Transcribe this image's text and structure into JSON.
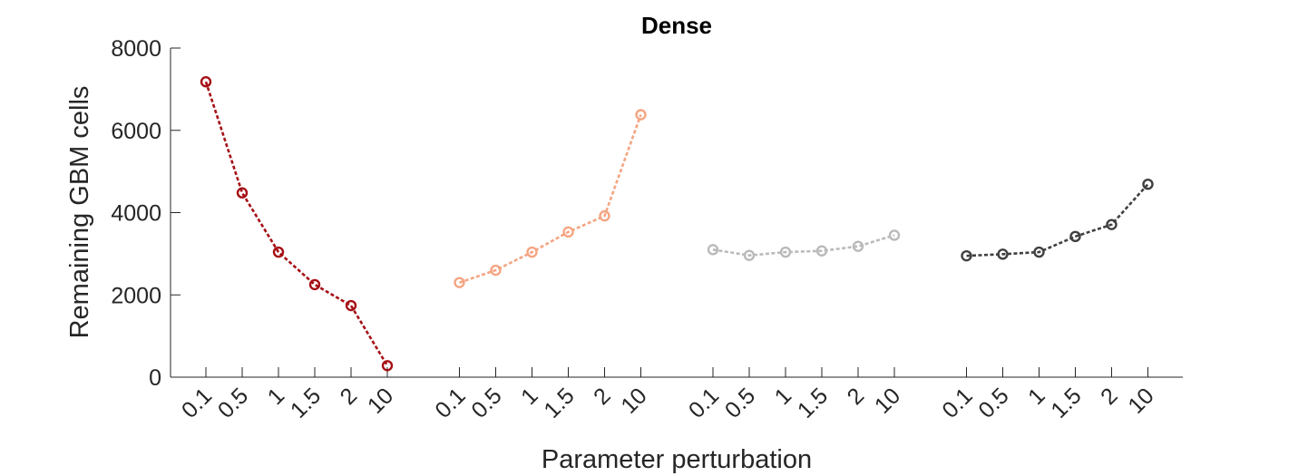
{
  "chart_data": {
    "type": "line",
    "title": "Dense",
    "xlabel": "Parameter perturbation",
    "ylabel": "Remaining GBM cells",
    "ylim": [
      0,
      8000
    ],
    "yticks": [
      0,
      2000,
      4000,
      6000,
      8000
    ],
    "categories": [
      "0.1",
      "0.5",
      "1",
      "1.5",
      "2",
      "10"
    ],
    "grid": false,
    "series": [
      {
        "color": "#a50f15",
        "values": [
          7180,
          4480,
          3040,
          2250,
          1740,
          280
        ]
      },
      {
        "color": "#f4a582",
        "values": [
          2300,
          2600,
          3040,
          3530,
          3920,
          6380
        ]
      },
      {
        "color": "#bababa",
        "values": [
          3100,
          2960,
          3040,
          3070,
          3180,
          3450
        ]
      },
      {
        "color": "#404040",
        "values": [
          2950,
          2990,
          3040,
          3420,
          3710,
          4690
        ]
      }
    ]
  }
}
